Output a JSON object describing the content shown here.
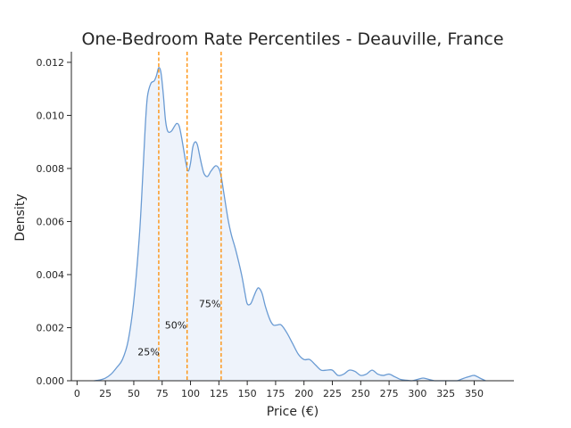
{
  "chart_data": {
    "type": "area",
    "title": "One-Bedroom Rate Percentiles - Deauville, France",
    "xlabel": "Price (€)",
    "ylabel": "Density",
    "xlim": [
      -5,
      385
    ],
    "ylim": [
      0,
      0.0124
    ],
    "x_ticks": [
      0,
      25,
      50,
      75,
      100,
      125,
      150,
      175,
      200,
      225,
      250,
      275,
      300,
      325,
      350
    ],
    "y_ticks": [
      0.0,
      0.002,
      0.004,
      0.006,
      0.008,
      0.01,
      0.012
    ],
    "y_tick_labels": [
      "0.000",
      "0.002",
      "0.004",
      "0.006",
      "0.008",
      "0.010",
      "0.012"
    ],
    "grid": false,
    "series": [
      {
        "color": "#6a9bd3",
        "fill": "#eef3fb",
        "x": [
          15,
          20,
          25,
          30,
          35,
          40,
          45,
          50,
          55,
          58,
          60,
          62,
          65,
          68,
          70,
          72,
          74,
          76,
          78,
          80,
          83,
          86,
          88,
          90,
          92,
          94,
          96,
          98,
          100,
          102,
          104,
          106,
          108,
          110,
          112,
          115,
          118,
          122,
          125,
          127,
          130,
          133,
          136,
          140,
          145,
          148,
          150,
          153,
          156,
          158,
          160,
          163,
          166,
          170,
          173,
          176,
          180,
          185,
          190,
          195,
          200,
          205,
          210,
          215,
          220,
          225,
          230,
          235,
          240,
          245,
          250,
          255,
          260,
          265,
          270,
          275,
          280,
          285,
          290,
          295,
          300,
          305,
          310,
          315,
          320,
          325,
          330,
          335,
          340,
          345,
          350,
          355,
          360
        ],
        "y": [
          0.0,
          3e-05,
          0.0001,
          0.00025,
          0.0005,
          0.0008,
          0.0015,
          0.003,
          0.0055,
          0.0078,
          0.0095,
          0.0107,
          0.0112,
          0.0113,
          0.0115,
          0.0118,
          0.0116,
          0.0108,
          0.0098,
          0.0094,
          0.0094,
          0.0096,
          0.0097,
          0.0096,
          0.0092,
          0.0087,
          0.0082,
          0.0079,
          0.0082,
          0.0088,
          0.009,
          0.0089,
          0.0085,
          0.0081,
          0.0078,
          0.0077,
          0.0079,
          0.0081,
          0.008,
          0.0077,
          0.0069,
          0.0061,
          0.0055,
          0.0049,
          0.004,
          0.0033,
          0.0029,
          0.0029,
          0.0032,
          0.0034,
          0.0035,
          0.0033,
          0.0028,
          0.0023,
          0.0021,
          0.0021,
          0.0021,
          0.0018,
          0.0014,
          0.001,
          0.0008,
          0.0008,
          0.0006,
          0.0004,
          0.0004,
          0.0004,
          0.0002,
          0.00025,
          0.0004,
          0.00035,
          0.0002,
          0.00025,
          0.0004,
          0.00025,
          0.0002,
          0.00025,
          0.00015,
          5e-05,
          2e-05,
          0.0,
          5e-05,
          0.0001,
          5e-05,
          0.0,
          0.0,
          0.0,
          0.0,
          0.0,
          8e-05,
          0.00015,
          0.0002,
          0.0001,
          0.0
        ]
      }
    ],
    "percentile_lines": [
      {
        "x": 72,
        "label": "25%",
        "label_x": 63,
        "label_y": 0.0011
      },
      {
        "x": 97,
        "label": "50%",
        "label_x": 87,
        "label_y": 0.0021
      },
      {
        "x": 127,
        "label": "75%",
        "label_x": 117,
        "label_y": 0.0029
      }
    ],
    "line_color": "#ff8c00"
  }
}
